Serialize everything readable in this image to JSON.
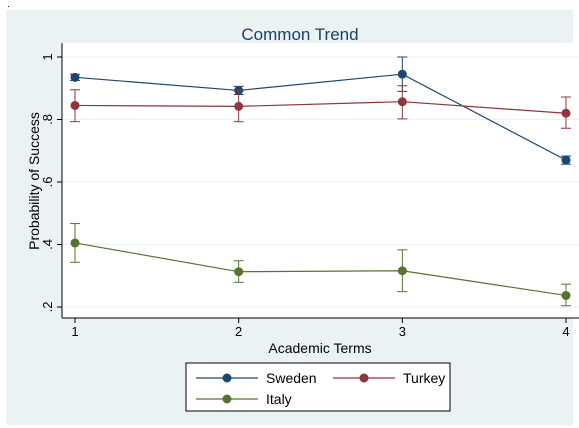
{
  "stray_mark": ".",
  "chart_data": {
    "type": "line",
    "title": "Common Trend",
    "xlabel": "Academic Terms",
    "ylabel": "Probability of Success",
    "x": [
      1,
      2,
      3,
      4
    ],
    "xlim": [
      1,
      4
    ],
    "ylim": [
      0.2,
      1.0
    ],
    "x_tick_labels": [
      "1",
      "2",
      "3",
      "4"
    ],
    "y_ticks": [
      0.2,
      0.4,
      0.6,
      0.8,
      1.0
    ],
    "y_tick_labels": [
      ".2",
      ".4",
      ".6",
      ".8",
      "1"
    ],
    "grid": true,
    "error_bars": true,
    "legend_position": "bottom",
    "series": [
      {
        "name": "Sweden",
        "color": "#1a476f",
        "values": [
          0.935,
          0.893,
          0.945,
          0.67
        ],
        "lower": [
          0.925,
          0.88,
          0.89,
          0.657
        ],
        "upper": [
          0.945,
          0.906,
          1.0,
          0.683
        ]
      },
      {
        "name": "Turkey",
        "color": "#90353b",
        "values": [
          0.845,
          0.842,
          0.857,
          0.82
        ],
        "lower": [
          0.793,
          0.793,
          0.802,
          0.772
        ],
        "upper": [
          0.895,
          0.892,
          0.908,
          0.872
        ]
      },
      {
        "name": "Italy",
        "color": "#55752f",
        "values": [
          0.405,
          0.313,
          0.316,
          0.237
        ],
        "lower": [
          0.343,
          0.279,
          0.249,
          0.204
        ],
        "upper": [
          0.467,
          0.348,
          0.383,
          0.273
        ]
      }
    ]
  }
}
